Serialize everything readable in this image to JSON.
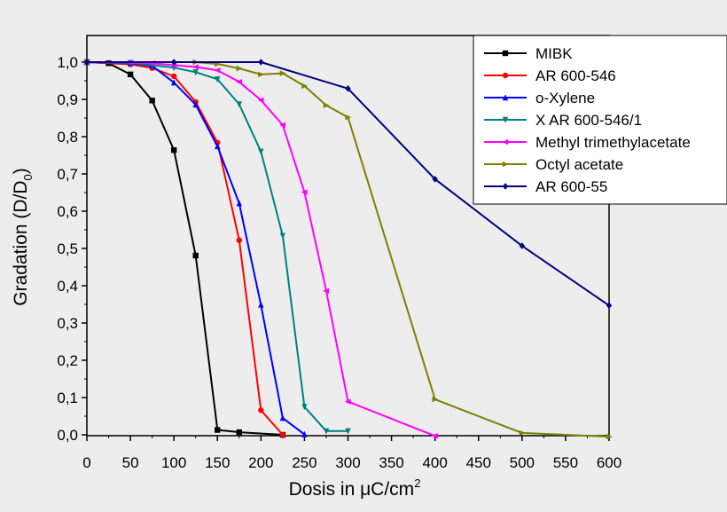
{
  "chart_data": {
    "type": "line",
    "xlabel": "Dosis in μC/cm",
    "xlabel_sup": "2",
    "ylabel": "Gradation (D/D",
    "ylabel_sub": "0",
    "ylabel_end": ")",
    "xlim": [
      0,
      600
    ],
    "ylim": [
      0,
      1.0
    ],
    "x_ticks": [
      "0",
      "50",
      "100",
      "150",
      "200",
      "250",
      "300",
      "350",
      "400",
      "450",
      "500",
      "550",
      "600"
    ],
    "y_ticks": [
      "0,0",
      "0,1",
      "0,2",
      "0,3",
      "0,4",
      "0,5",
      "0,6",
      "0,7",
      "0,8",
      "0,9",
      "1,0"
    ],
    "grid": false,
    "legend_position": "top-right",
    "series": [
      {
        "name": "MIBK",
        "color": "#000000",
        "marker": "square",
        "points": [
          [
            0,
            1.0
          ],
          [
            25,
            0.997
          ],
          [
            50,
            0.967
          ],
          [
            75,
            0.897
          ],
          [
            100,
            0.764
          ],
          [
            125,
            0.481
          ],
          [
            150,
            0.013
          ],
          [
            175,
            0.007
          ],
          [
            225,
            0.0
          ]
        ]
      },
      {
        "name": "AR 600-546",
        "color": "#ff0000",
        "marker": "circle",
        "points": [
          [
            0,
            1.0
          ],
          [
            50,
            0.994
          ],
          [
            75,
            0.984
          ],
          [
            100,
            0.962
          ],
          [
            125,
            0.893
          ],
          [
            150,
            0.784
          ],
          [
            175,
            0.522
          ],
          [
            200,
            0.066
          ],
          [
            225,
            0.0
          ]
        ]
      },
      {
        "name": "o-Xylene",
        "color": "#0000ff",
        "marker": "triangle-up",
        "points": [
          [
            0,
            1.0
          ],
          [
            50,
            0.997
          ],
          [
            75,
            0.99
          ],
          [
            100,
            0.945
          ],
          [
            125,
            0.886
          ],
          [
            150,
            0.774
          ],
          [
            175,
            0.621
          ],
          [
            200,
            0.349
          ],
          [
            225,
            0.045
          ],
          [
            250,
            0.001
          ]
        ]
      },
      {
        "name": "X AR 600-546/1",
        "color": "#008080",
        "marker": "triangle-down",
        "points": [
          [
            0,
            1.0
          ],
          [
            50,
            0.998
          ],
          [
            75,
            0.992
          ],
          [
            100,
            0.985
          ],
          [
            125,
            0.973
          ],
          [
            150,
            0.954
          ],
          [
            175,
            0.887
          ],
          [
            200,
            0.76
          ],
          [
            225,
            0.534
          ],
          [
            250,
            0.075
          ],
          [
            275,
            0.01
          ],
          [
            300,
            0.01
          ]
        ]
      },
      {
        "name": "Methyl trimethylacetate",
        "color": "#ff00ff",
        "marker": "triangle-left",
        "points": [
          [
            0,
            1.0
          ],
          [
            50,
            0.999
          ],
          [
            75,
            0.997
          ],
          [
            100,
            0.992
          ],
          [
            125,
            0.987
          ],
          [
            150,
            0.978
          ],
          [
            175,
            0.947
          ],
          [
            200,
            0.898
          ],
          [
            225,
            0.831
          ],
          [
            250,
            0.651
          ],
          [
            275,
            0.386
          ],
          [
            300,
            0.089
          ],
          [
            400,
            -0.003
          ]
        ]
      },
      {
        "name": "Octyl acetate",
        "color": "#808000",
        "marker": "triangle-right",
        "points": [
          [
            0,
            1.0
          ],
          [
            125,
            1.0
          ],
          [
            150,
            0.995
          ],
          [
            175,
            0.983
          ],
          [
            200,
            0.967
          ],
          [
            225,
            0.97
          ],
          [
            250,
            0.936
          ],
          [
            275,
            0.884
          ],
          [
            300,
            0.852
          ],
          [
            400,
            0.095
          ],
          [
            500,
            0.005
          ],
          [
            600,
            -0.005
          ]
        ]
      },
      {
        "name": "AR 600-55",
        "color": "#000080",
        "marker": "diamond",
        "points": [
          [
            0,
            1.0
          ],
          [
            100,
            1.0
          ],
          [
            200,
            1.0
          ],
          [
            300,
            0.929
          ],
          [
            400,
            0.686
          ],
          [
            500,
            0.507
          ],
          [
            600,
            0.347
          ]
        ]
      }
    ]
  }
}
